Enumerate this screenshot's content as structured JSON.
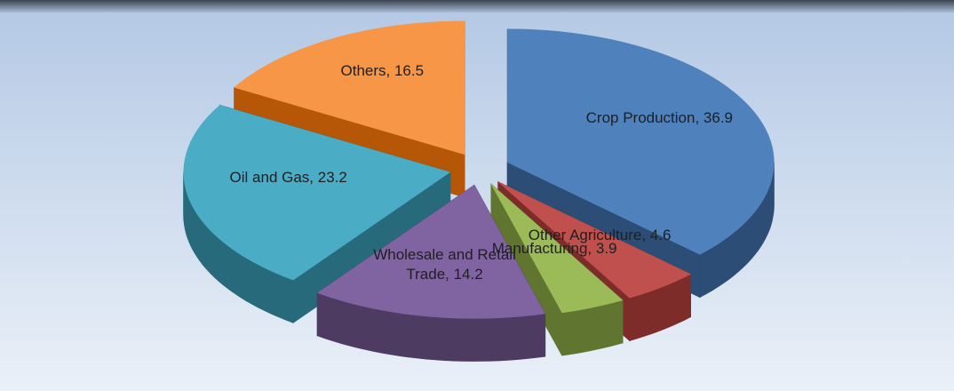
{
  "chart_data": {
    "type": "pie3d",
    "categories": [
      "Crop Production",
      "Other Agriculture",
      "Manufacturing",
      "Wholesale and Retail Trade",
      "Oil and Gas",
      "Others"
    ],
    "values": [
      36.9,
      4.6,
      3.9,
      14.2,
      23.2,
      16.5
    ],
    "value_labels": [
      "Crop Production, 36.9",
      "Other Agriculture, 4.6",
      "Manufacturing, 3.9",
      "Wholesale and Retail Trade, 14.2",
      "Oil and Gas, 23.2",
      "Others, 16.5"
    ],
    "colors": [
      "#4f81bd",
      "#c0504d",
      "#9bbb59",
      "#8064a2",
      "#4bacc6",
      "#f79646"
    ],
    "side_colors": [
      "#2c4d75",
      "#7d2c2a",
      "#5f7530",
      "#4d3b62",
      "#276a7c",
      "#b65708"
    ]
  }
}
